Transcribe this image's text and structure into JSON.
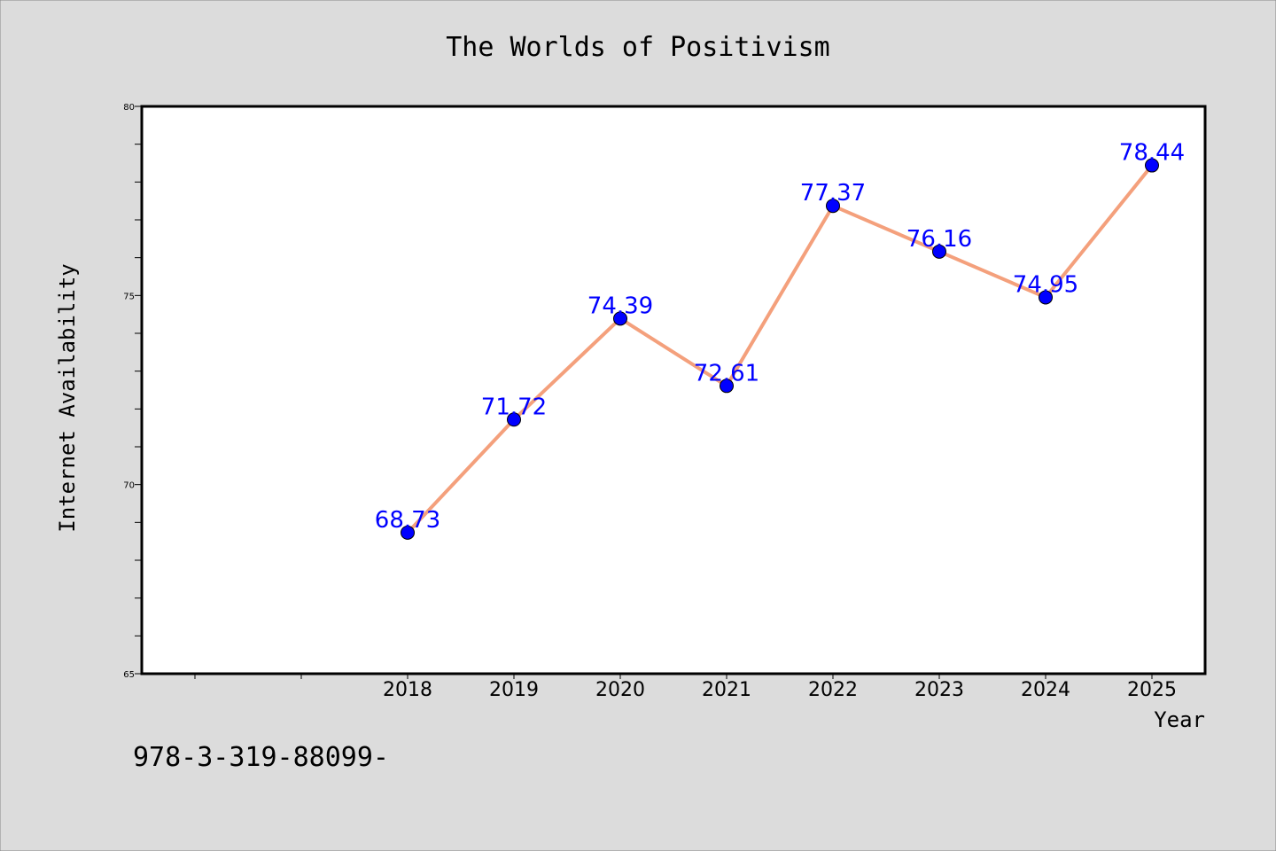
{
  "chart_data": {
    "type": "line",
    "title": "The Worlds of Positivism",
    "xlabel": "Year",
    "ylabel": "Internet Availability",
    "x": [
      "2018",
      "2019",
      "2020",
      "2021",
      "2022",
      "2023",
      "2024",
      "2025"
    ],
    "series": [
      {
        "values": [
          68.73,
          71.72,
          74.39,
          72.61,
          77.37,
          76.16,
          74.95,
          78.44
        ]
      }
    ],
    "data_labels": [
      "68.73",
      "71.72",
      "74.39",
      "72.61",
      "77.37",
      "76.16",
      "74.95",
      "78.44"
    ],
    "ylim": [
      65,
      80
    ],
    "yticks": [
      65,
      70,
      75,
      80
    ],
    "ytick_labels": [
      "65",
      "70",
      "75",
      "80"
    ],
    "grid": false,
    "legend": "none",
    "colors": {
      "background": "#dcdcdc",
      "plot_background": "#ffffff",
      "line": "#f4a07c",
      "marker": "#0000ff",
      "data_label": "#0000ff",
      "axis": "#000000"
    }
  },
  "footer": {
    "isbn_text": "978-3-319-88099-"
  }
}
